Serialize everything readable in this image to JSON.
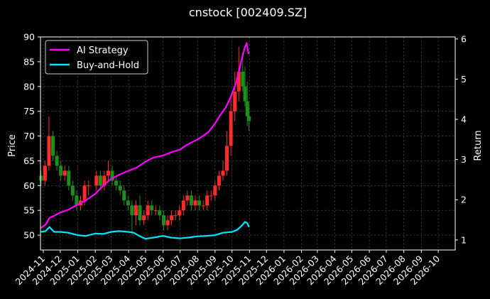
{
  "chart_data": {
    "type": "line",
    "title": "cnstock [002409.SZ]",
    "ylabel": "Price",
    "y2label": "Return",
    "ylim": [
      47,
      90
    ],
    "y2lim": [
      0.75,
      6.05
    ],
    "xlim": [
      "2024-10-27",
      "2026-10-31"
    ],
    "yticks": [
      50,
      55,
      60,
      65,
      70,
      75,
      80,
      85,
      90
    ],
    "y2ticks": [
      1,
      2,
      3,
      4,
      5,
      6
    ],
    "xticks": [
      "2024-11",
      "2024-12",
      "2025-01",
      "2025-02",
      "2025-03",
      "2025-04",
      "2025-05",
      "2025-06",
      "2025-07",
      "2025-08",
      "2025-09",
      "2025-10",
      "2025-11",
      "2025-12",
      "2026-01",
      "2026-02",
      "2026-03",
      "2026-04",
      "2026-05",
      "2026-06",
      "2026-07",
      "2026-08",
      "2026-09",
      "2026-10"
    ],
    "grid": true,
    "legend_position": "upper-left",
    "colors": {
      "background": "#000000",
      "ai_strategy": "#ff00ff",
      "buy_and_hold": "#00e5ff",
      "candle_up": "#ff2a2a",
      "candle_down": "#1a8f1a",
      "grid": "#555555",
      "text": "#ffffff"
    },
    "series": [
      {
        "name": "AI Strategy",
        "axis": "right",
        "x": [
          "2024-10-28",
          "2024-11-05",
          "2024-11-12",
          "2024-11-20",
          "2024-12-01",
          "2024-12-15",
          "2025-01-01",
          "2025-01-15",
          "2025-02-01",
          "2025-02-15",
          "2025-03-01",
          "2025-03-15",
          "2025-04-01",
          "2025-04-15",
          "2025-05-01",
          "2025-05-15",
          "2025-06-01",
          "2025-06-15",
          "2025-07-01",
          "2025-07-15",
          "2025-08-01",
          "2025-08-10",
          "2025-08-20",
          "2025-09-01",
          "2025-09-10",
          "2025-09-20",
          "2025-09-30",
          "2025-10-08",
          "2025-10-15",
          "2025-10-20",
          "2025-10-24",
          "2025-10-27",
          "2025-10-29",
          "2025-10-31"
        ],
        "values": [
          1.3,
          1.38,
          1.55,
          1.6,
          1.68,
          1.75,
          1.88,
          1.98,
          2.15,
          2.35,
          2.52,
          2.62,
          2.72,
          2.8,
          2.95,
          3.05,
          3.1,
          3.18,
          3.25,
          3.38,
          3.5,
          3.58,
          3.68,
          3.9,
          4.1,
          4.3,
          4.6,
          4.9,
          5.3,
          5.6,
          5.8,
          5.9,
          5.72,
          5.62
        ]
      },
      {
        "name": "Buy-and-Hold",
        "axis": "right",
        "x": [
          "2024-10-28",
          "2024-11-05",
          "2024-11-12",
          "2024-11-20",
          "2024-12-01",
          "2024-12-15",
          "2025-01-01",
          "2025-01-15",
          "2025-02-01",
          "2025-02-15",
          "2025-03-01",
          "2025-03-15",
          "2025-04-01",
          "2025-04-10",
          "2025-04-20",
          "2025-05-01",
          "2025-05-15",
          "2025-06-01",
          "2025-06-15",
          "2025-07-01",
          "2025-07-15",
          "2025-08-01",
          "2025-08-15",
          "2025-09-01",
          "2025-09-15",
          "2025-10-01",
          "2025-10-10",
          "2025-10-18",
          "2025-10-24",
          "2025-10-28",
          "2025-10-31"
        ],
        "values": [
          1.2,
          1.22,
          1.32,
          1.2,
          1.2,
          1.18,
          1.12,
          1.1,
          1.16,
          1.15,
          1.2,
          1.22,
          1.2,
          1.18,
          1.1,
          1.03,
          1.06,
          1.1,
          1.06,
          1.04,
          1.06,
          1.09,
          1.1,
          1.12,
          1.18,
          1.2,
          1.25,
          1.35,
          1.45,
          1.42,
          1.32
        ]
      },
      {
        "name": "Price",
        "type": "candlestick",
        "axis": "left",
        "x": [
          "2024-10-28",
          "2024-11-04",
          "2024-11-11",
          "2024-11-18",
          "2024-11-25",
          "2024-12-02",
          "2024-12-09",
          "2024-12-16",
          "2024-12-23",
          "2024-12-30",
          "2025-01-06",
          "2025-01-13",
          "2025-01-20",
          "2025-02-03",
          "2025-02-10",
          "2025-02-17",
          "2025-02-24",
          "2025-03-03",
          "2025-03-10",
          "2025-03-17",
          "2025-03-24",
          "2025-03-31",
          "2025-04-07",
          "2025-04-14",
          "2025-04-21",
          "2025-04-28",
          "2025-05-05",
          "2025-05-12",
          "2025-05-19",
          "2025-05-26",
          "2025-06-02",
          "2025-06-09",
          "2025-06-16",
          "2025-06-23",
          "2025-06-30",
          "2025-07-07",
          "2025-07-14",
          "2025-07-21",
          "2025-07-28",
          "2025-08-04",
          "2025-08-11",
          "2025-08-18",
          "2025-08-25",
          "2025-09-01",
          "2025-09-08",
          "2025-09-15",
          "2025-09-22",
          "2025-09-29",
          "2025-10-06",
          "2025-10-13",
          "2025-10-20",
          "2025-10-24",
          "2025-10-28",
          "2025-10-31"
        ],
        "open": [
          62,
          61,
          64,
          70,
          66,
          64,
          62,
          63,
          60,
          58,
          56,
          57,
          60,
          60,
          62,
          60,
          62,
          63,
          61,
          60,
          59,
          57,
          56,
          54,
          56,
          53,
          54,
          56,
          55,
          55,
          54,
          52,
          53,
          54,
          54,
          55,
          57,
          58,
          56,
          57,
          56,
          56,
          58,
          58,
          60,
          62,
          63,
          68,
          75,
          79,
          83,
          80,
          77,
          74
        ],
        "close": [
          61,
          64,
          70,
          66,
          64,
          62,
          63,
          60,
          58,
          56,
          57,
          60,
          60,
          62,
          60,
          62,
          63,
          61,
          60,
          59,
          57,
          56,
          54,
          56,
          53,
          54,
          56,
          55,
          55,
          54,
          52,
          53,
          54,
          54,
          55,
          57,
          58,
          56,
          57,
          56,
          56,
          58,
          58,
          60,
          62,
          63,
          68,
          75,
          79,
          83,
          80,
          77,
          74,
          73
        ],
        "high": [
          63,
          65,
          74,
          71,
          67,
          65,
          64,
          64,
          61,
          59,
          58,
          61,
          61,
          63,
          63,
          63,
          65,
          64,
          62,
          61,
          60,
          58,
          57,
          57,
          58,
          55,
          57,
          57,
          56,
          56,
          55,
          54,
          55,
          55,
          56,
          58,
          59,
          59,
          58,
          58,
          57,
          59,
          59,
          61,
          63,
          65,
          71,
          78,
          83,
          88,
          87,
          84,
          81,
          76
        ],
        "low": [
          60,
          60,
          63,
          65,
          63,
          61,
          61,
          59,
          57,
          55,
          55,
          56,
          58,
          59,
          59,
          59,
          61,
          60,
          59,
          58,
          56,
          55,
          50,
          52,
          52,
          52,
          53,
          54,
          54,
          53,
          51,
          51,
          52,
          53,
          53,
          54,
          56,
          55,
          55,
          55,
          55,
          55,
          57,
          57,
          59,
          61,
          62,
          66,
          73,
          77,
          79,
          76,
          72,
          71
        ]
      }
    ]
  }
}
